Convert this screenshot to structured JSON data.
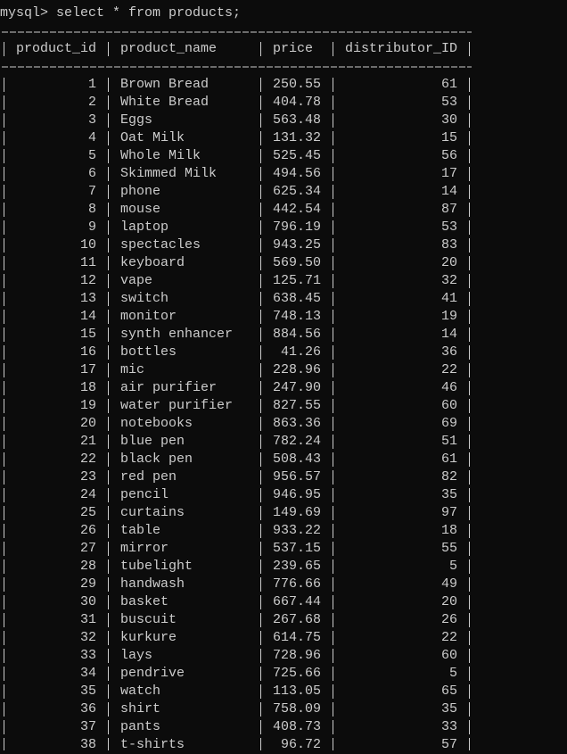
{
  "prompt": "mysql> select * from products;",
  "table": {
    "columns": [
      "product_id",
      "product_name",
      "price",
      "distributor_ID"
    ],
    "rows": [
      [
        1,
        "Brown Bread",
        "250.55",
        61
      ],
      [
        2,
        "White Bread",
        "404.78",
        53
      ],
      [
        3,
        "Eggs",
        "563.48",
        30
      ],
      [
        4,
        "Oat Milk",
        "131.32",
        15
      ],
      [
        5,
        "Whole Milk",
        "525.45",
        56
      ],
      [
        6,
        "Skimmed Milk",
        "494.56",
        17
      ],
      [
        7,
        "phone",
        "625.34",
        14
      ],
      [
        8,
        "mouse",
        "442.54",
        87
      ],
      [
        9,
        "laptop",
        "796.19",
        53
      ],
      [
        10,
        "spectacles",
        "943.25",
        83
      ],
      [
        11,
        "keyboard",
        "569.50",
        20
      ],
      [
        12,
        "vape",
        "125.71",
        32
      ],
      [
        13,
        "switch",
        "638.45",
        41
      ],
      [
        14,
        "monitor",
        "748.13",
        19
      ],
      [
        15,
        "synth enhancer",
        "884.56",
        14
      ],
      [
        16,
        "bottles",
        "41.26",
        36
      ],
      [
        17,
        "mic",
        "228.96",
        22
      ],
      [
        18,
        "air purifier",
        "247.90",
        46
      ],
      [
        19,
        "water purifier",
        "827.55",
        60
      ],
      [
        20,
        "notebooks",
        "863.36",
        69
      ],
      [
        21,
        "blue pen",
        "782.24",
        51
      ],
      [
        22,
        "black pen",
        "508.43",
        61
      ],
      [
        23,
        "red pen",
        "956.57",
        82
      ],
      [
        24,
        "pencil",
        "946.95",
        35
      ],
      [
        25,
        "curtains",
        "149.69",
        97
      ],
      [
        26,
        "table",
        "933.22",
        18
      ],
      [
        27,
        "mirror",
        "537.15",
        55
      ],
      [
        28,
        "tubelight",
        "239.65",
        5
      ],
      [
        29,
        "handwash",
        "776.66",
        49
      ],
      [
        30,
        "basket",
        "667.44",
        20
      ],
      [
        31,
        "buscuit",
        "267.68",
        26
      ],
      [
        32,
        "kurkure",
        "614.75",
        22
      ],
      [
        33,
        "lays",
        "728.96",
        60
      ],
      [
        34,
        "pendrive",
        "725.66",
        5
      ],
      [
        35,
        "watch",
        "113.05",
        65
      ],
      [
        36,
        "shirt",
        "758.09",
        35
      ],
      [
        37,
        "pants",
        "408.73",
        33
      ],
      [
        38,
        "t-shirts",
        "96.72",
        57
      ]
    ]
  }
}
